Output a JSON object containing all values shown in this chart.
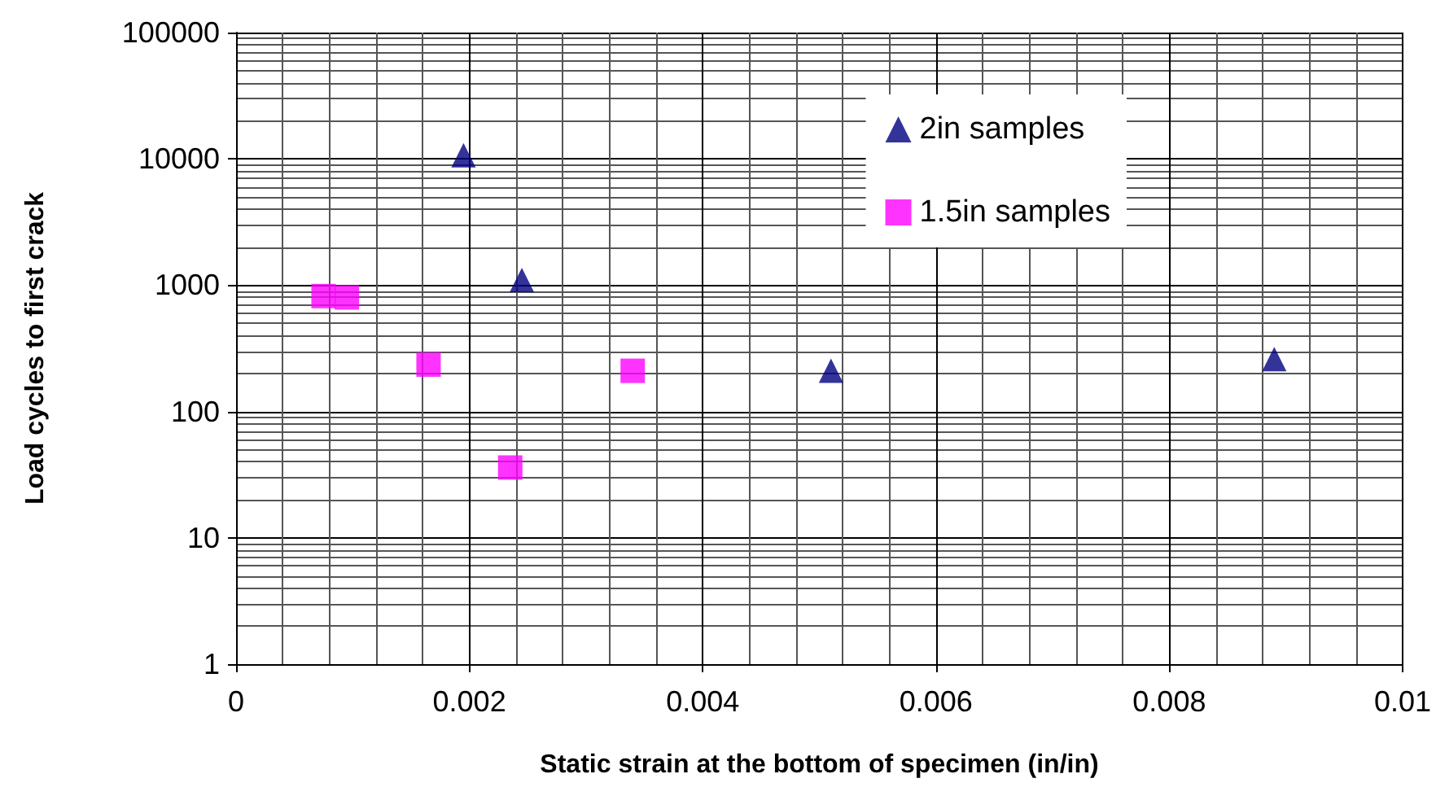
{
  "chart_data": {
    "type": "scatter",
    "xlabel": "Static strain at the bottom of specimen (in/in)",
    "ylabel": "Load cycles to first crack",
    "log": "y",
    "grid": true,
    "legend": "top right",
    "xlim": [
      0,
      0.01
    ],
    "xticks": [
      0,
      0.002,
      0.004,
      0.006,
      0.008,
      0.01
    ],
    "ylim": [
      1,
      100000
    ],
    "yticks": [
      1,
      10,
      100,
      1000,
      10000,
      100000
    ],
    "series": [
      {
        "name": "2in samples",
        "color": "#000080",
        "marker": "triangle",
        "x": [
          0.00195,
          0.00245,
          0.0051,
          0.0089
        ],
        "values": [
          10700,
          1100,
          210,
          260
        ]
      },
      {
        "name": "1.5in samples",
        "color": "#ff00ff",
        "marker": "square",
        "x": [
          0.00075,
          0.00095,
          0.00165,
          0.00235,
          0.0034
        ],
        "values": [
          820,
          800,
          235,
          36,
          210
        ]
      }
    ]
  }
}
